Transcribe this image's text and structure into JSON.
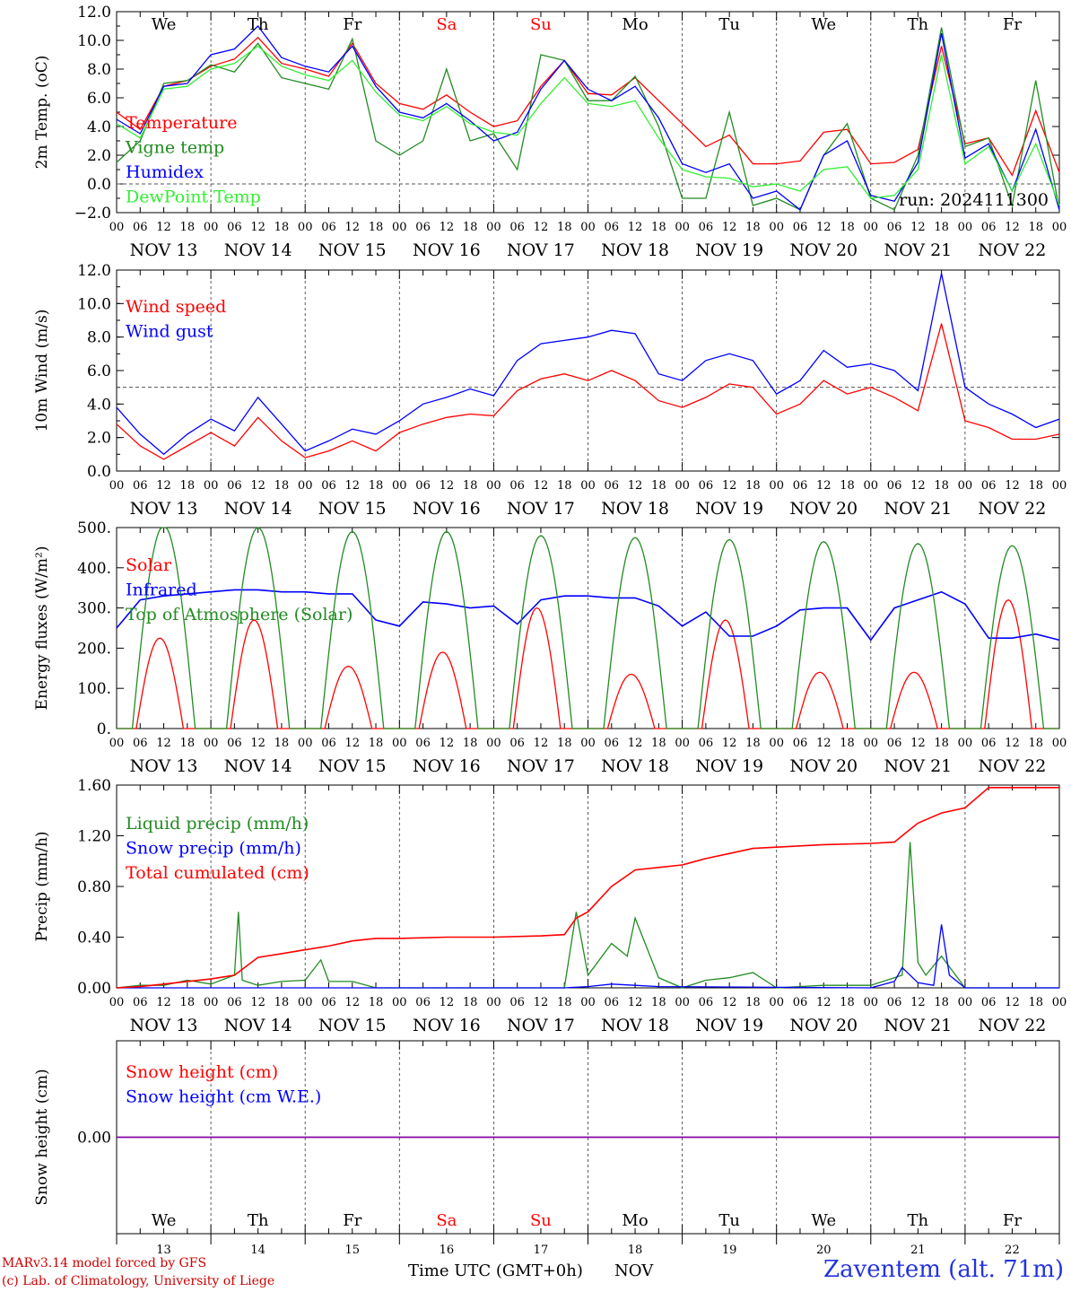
{
  "footer": {
    "model_line": "MARv3.14 model forced by GFS",
    "copyright_line": "(c) Lab. of Climatology, University of Liege",
    "xaxis_title": "Time UTC (GMT+0h)",
    "xaxis_unit": "NOV",
    "station": "Zaventem (alt. 71m)"
  },
  "run_label": "run: 2024111300",
  "colors": {
    "red": "#ff0000",
    "green": "#228b22",
    "blue": "#0000ff",
    "lightgreen": "#33ee33",
    "purple": "#8800aa"
  },
  "chart_data": [
    {
      "type": "line",
      "id": "temperature",
      "ylabel": "2m Temp. (oC)",
      "ylim": [
        -2,
        12
      ],
      "yticks": [
        "12.0",
        "10.0",
        "8.0",
        "6.0",
        "4.0",
        "2.0",
        "0.0",
        "−2.0"
      ],
      "ref_line": 0,
      "x_unit": "hours since Nov 13 00 UTC",
      "xlim": [
        0,
        240
      ],
      "legend_position": "left",
      "series": [
        {
          "name": "Temperature",
          "color": "#ff0000",
          "x": [
            0,
            6,
            12,
            18,
            24,
            30,
            36,
            42,
            48,
            54,
            60,
            66,
            72,
            78,
            84,
            90,
            96,
            102,
            108,
            114,
            120,
            126,
            132,
            138,
            144,
            150,
            156,
            162,
            168,
            174,
            180,
            186,
            192,
            198,
            204,
            210,
            216,
            222,
            228,
            234,
            240
          ],
          "y": [
            5.0,
            3.8,
            6.8,
            7.2,
            8.2,
            8.7,
            10.2,
            8.4,
            8.0,
            7.5,
            9.8,
            7.0,
            5.6,
            5.2,
            6.2,
            5.0,
            4.0,
            4.4,
            6.8,
            8.6,
            6.3,
            6.2,
            7.4,
            5.8,
            4.2,
            2.6,
            3.4,
            1.4,
            1.4,
            1.6,
            3.6,
            3.8,
            1.4,
            1.5,
            2.4,
            9.6,
            2.8,
            3.2,
            0.6,
            5.1,
            0.8
          ]
        },
        {
          "name": "Vigne temp",
          "color": "#228b22",
          "x": [
            0,
            6,
            12,
            18,
            24,
            30,
            36,
            42,
            48,
            54,
            60,
            66,
            72,
            78,
            84,
            90,
            96,
            102,
            108,
            114,
            120,
            126,
            132,
            138,
            144,
            150,
            156,
            162,
            168,
            174,
            180,
            186,
            192,
            198,
            204,
            210,
            216,
            222,
            228,
            234,
            240
          ],
          "y": [
            1.5,
            3.0,
            7.0,
            7.2,
            8.3,
            7.8,
            9.8,
            7.4,
            7.0,
            6.6,
            10.1,
            3.0,
            2.0,
            3.0,
            8.0,
            3.0,
            3.5,
            1.0,
            9.0,
            8.6,
            5.8,
            5.8,
            7.5,
            4.0,
            -1.0,
            -1.0,
            5.0,
            -1.5,
            -1.0,
            -1.8,
            2.0,
            4.2,
            -1.0,
            -1.8,
            2.0,
            10.9,
            2.6,
            3.2,
            -1.5,
            7.2,
            -1.8
          ]
        },
        {
          "name": "Humidex",
          "color": "#0000ff",
          "x": [
            0,
            6,
            12,
            18,
            24,
            30,
            36,
            42,
            48,
            54,
            60,
            66,
            72,
            78,
            84,
            90,
            96,
            102,
            108,
            114,
            120,
            126,
            132,
            138,
            144,
            150,
            156,
            162,
            168,
            174,
            180,
            186,
            192,
            198,
            204,
            210,
            216,
            222,
            228,
            234,
            240
          ],
          "y": [
            4.5,
            3.5,
            6.8,
            7.0,
            9.0,
            9.4,
            11.0,
            8.8,
            8.2,
            7.8,
            9.6,
            6.8,
            5.0,
            4.6,
            5.6,
            4.4,
            3.0,
            3.6,
            6.6,
            8.6,
            6.6,
            5.8,
            6.8,
            4.6,
            1.4,
            0.8,
            1.4,
            -1.0,
            -0.5,
            -1.8,
            2.0,
            3.0,
            -0.8,
            -1.2,
            1.5,
            10.5,
            1.8,
            2.8,
            -0.5,
            3.8,
            -1.8
          ]
        },
        {
          "name": "DewPoint Temp",
          "color": "#33ee33",
          "x": [
            0,
            6,
            12,
            18,
            24,
            30,
            36,
            42,
            48,
            54,
            60,
            66,
            72,
            78,
            84,
            90,
            96,
            102,
            108,
            114,
            120,
            126,
            132,
            138,
            144,
            150,
            156,
            162,
            168,
            174,
            180,
            186,
            192,
            198,
            204,
            210,
            216,
            222,
            228,
            234,
            240
          ],
          "y": [
            4.2,
            3.2,
            6.6,
            6.8,
            8.0,
            8.4,
            9.6,
            8.2,
            7.6,
            7.2,
            8.6,
            6.4,
            4.8,
            4.4,
            5.4,
            4.2,
            3.6,
            3.4,
            5.6,
            7.4,
            5.6,
            5.4,
            5.8,
            3.2,
            1.0,
            0.5,
            0.4,
            -0.2,
            0.0,
            -0.5,
            1.0,
            1.2,
            -1.0,
            -0.8,
            1.0,
            9.0,
            1.4,
            2.6,
            -0.5,
            2.8,
            -1.5
          ]
        }
      ]
    },
    {
      "type": "line",
      "id": "wind",
      "ylabel": "10m Wind (m/s)",
      "ylim": [
        0,
        12
      ],
      "yticks": [
        "12.0",
        "10.0",
        "8.0",
        "6.0",
        "4.0",
        "2.0",
        "0.0"
      ],
      "ref_line": 5,
      "xlim": [
        0,
        240
      ],
      "series": [
        {
          "name": "Wind speed",
          "color": "#ff0000",
          "x": [
            0,
            6,
            12,
            18,
            24,
            30,
            36,
            42,
            48,
            54,
            60,
            66,
            72,
            78,
            84,
            90,
            96,
            102,
            108,
            114,
            120,
            126,
            132,
            138,
            144,
            150,
            156,
            162,
            168,
            174,
            180,
            186,
            192,
            198,
            204,
            210,
            216,
            222,
            228,
            234,
            240
          ],
          "y": [
            2.8,
            1.5,
            0.7,
            1.5,
            2.3,
            1.5,
            3.2,
            1.8,
            0.8,
            1.2,
            1.8,
            1.2,
            2.3,
            2.8,
            3.2,
            3.4,
            3.3,
            4.8,
            5.5,
            5.8,
            5.4,
            6.0,
            5.4,
            4.2,
            3.8,
            4.4,
            5.2,
            5.0,
            3.4,
            4.0,
            5.4,
            4.6,
            5.0,
            4.4,
            3.6,
            8.8,
            3.0,
            2.6,
            1.9,
            1.9,
            2.2
          ]
        },
        {
          "name": "Wind gust",
          "color": "#0000ff",
          "x": [
            0,
            6,
            12,
            18,
            24,
            30,
            36,
            42,
            48,
            54,
            60,
            66,
            72,
            78,
            84,
            90,
            96,
            102,
            108,
            114,
            120,
            126,
            132,
            138,
            144,
            150,
            156,
            162,
            168,
            174,
            180,
            186,
            192,
            198,
            204,
            210,
            216,
            222,
            228,
            234,
            240
          ],
          "y": [
            3.8,
            2.2,
            1.0,
            2.2,
            3.1,
            2.4,
            4.4,
            2.8,
            1.2,
            1.8,
            2.5,
            2.2,
            3.0,
            4.0,
            4.4,
            4.9,
            4.5,
            6.6,
            7.6,
            7.8,
            8.0,
            8.4,
            8.2,
            5.8,
            5.4,
            6.6,
            7.0,
            6.6,
            4.6,
            5.4,
            7.2,
            6.2,
            6.4,
            6.0,
            4.8,
            11.8,
            5.0,
            4.0,
            3.4,
            2.6,
            3.1
          ]
        }
      ]
    },
    {
      "type": "line",
      "id": "energy",
      "ylabel": "Energy fluxes (W/m²)",
      "ylim": [
        0,
        500
      ],
      "yticks": [
        "500.",
        "400.",
        "300.",
        "200.",
        "100.",
        "0."
      ],
      "xlim": [
        0,
        240
      ],
      "series": [
        {
          "name": "Solar",
          "color": "#ff0000",
          "peaks": [
            225,
            270,
            155,
            190,
            300,
            135,
            270,
            140,
            140,
            320
          ],
          "peak_hours": [
            11,
            35,
            59,
            83,
            107,
            131,
            155,
            179,
            203,
            227
          ]
        },
        {
          "name": "Infrared",
          "color": "#0000ff",
          "x": [
            0,
            6,
            12,
            18,
            24,
            30,
            36,
            42,
            48,
            54,
            60,
            66,
            72,
            78,
            84,
            90,
            96,
            102,
            108,
            114,
            120,
            126,
            132,
            138,
            144,
            150,
            156,
            162,
            168,
            174,
            180,
            186,
            192,
            198,
            204,
            210,
            216,
            222,
            228,
            234,
            240
          ],
          "y": [
            250,
            320,
            330,
            335,
            340,
            345,
            345,
            340,
            340,
            335,
            335,
            270,
            255,
            315,
            310,
            300,
            305,
            260,
            320,
            330,
            330,
            325,
            325,
            305,
            255,
            290,
            230,
            230,
            255,
            295,
            300,
            300,
            220,
            300,
            320,
            340,
            310,
            225,
            225,
            235,
            220
          ]
        },
        {
          "name": "Top of Atmosphere (Solar)",
          "color": "#228b22",
          "peaks": [
            505,
            500,
            490,
            490,
            480,
            475,
            470,
            465,
            460,
            455
          ],
          "peak_hours": [
            12,
            36,
            60,
            84,
            108,
            132,
            156,
            180,
            204,
            228
          ]
        }
      ]
    },
    {
      "type": "line",
      "id": "precip",
      "ylabel": "Precip (mm/h)",
      "ylim": [
        0,
        1.6
      ],
      "yticks": [
        "1.60",
        "1.20",
        "0.80",
        "0.40",
        "0.00"
      ],
      "xlim": [
        0,
        240
      ],
      "series": [
        {
          "name": "Liquid precip (mm/h)",
          "color": "#228b22",
          "x": [
            0,
            6,
            12,
            18,
            24,
            30,
            31,
            32,
            36,
            42,
            48,
            52,
            54,
            60,
            66,
            90,
            114,
            117,
            120,
            126,
            130,
            132,
            138,
            144,
            150,
            156,
            162,
            168,
            180,
            192,
            200,
            202,
            204,
            206,
            210,
            216,
            240
          ],
          "y": [
            0,
            0.02,
            0.02,
            0.06,
            0.03,
            0.1,
            0.6,
            0.06,
            0.02,
            0.05,
            0.06,
            0.22,
            0.05,
            0.05,
            0.0,
            0.0,
            0.0,
            0.6,
            0.1,
            0.35,
            0.25,
            0.55,
            0.08,
            0.0,
            0.06,
            0.08,
            0.12,
            0.0,
            0.02,
            0.02,
            0.1,
            1.15,
            0.2,
            0.1,
            0.25,
            0.0,
            0.0
          ]
        },
        {
          "name": "Snow precip (mm/h)",
          "color": "#0000ff",
          "x": [
            0,
            114,
            120,
            126,
            132,
            138,
            192,
            198,
            200,
            204,
            208,
            210,
            212,
            216,
            240
          ],
          "y": [
            0,
            0,
            0.01,
            0.03,
            0.02,
            0.01,
            0,
            0.05,
            0.16,
            0.04,
            0.02,
            0.5,
            0.1,
            0,
            0
          ]
        },
        {
          "name": "Total cumulated (cm)",
          "color": "#ff0000",
          "x": [
            0,
            6,
            12,
            18,
            24,
            30,
            36,
            42,
            48,
            54,
            60,
            66,
            72,
            84,
            96,
            108,
            114,
            117,
            120,
            126,
            132,
            138,
            144,
            150,
            156,
            162,
            168,
            180,
            192,
            198,
            200,
            204,
            210,
            216,
            222,
            228,
            234,
            240
          ],
          "y": [
            0.0,
            0.01,
            0.03,
            0.05,
            0.07,
            0.1,
            0.24,
            0.27,
            0.3,
            0.33,
            0.37,
            0.39,
            0.39,
            0.4,
            0.4,
            0.41,
            0.42,
            0.55,
            0.6,
            0.8,
            0.93,
            0.95,
            0.97,
            1.02,
            1.06,
            1.1,
            1.11,
            1.13,
            1.14,
            1.15,
            1.2,
            1.3,
            1.38,
            1.42,
            1.58,
            1.58,
            1.58,
            1.58
          ]
        }
      ]
    },
    {
      "type": "line",
      "id": "snow",
      "ylabel": "Snow height (cm)",
      "ylim": [
        -1,
        1
      ],
      "yticks": [
        "0.00"
      ],
      "xlim": [
        0,
        240
      ],
      "series": [
        {
          "name": "Snow height (cm)",
          "color": "#ff0000",
          "x": [
            0,
            240
          ],
          "y": [
            0,
            0
          ]
        },
        {
          "name": "Snow height (cm W.E.)",
          "color": "#0000ff",
          "x": [
            0,
            240
          ],
          "y": [
            0,
            0
          ]
        }
      ]
    }
  ],
  "xaxis": {
    "hour_ticks": [
      "00",
      "06",
      "12",
      "18"
    ],
    "last_tick": "00",
    "dates": [
      "NOV 13",
      "NOV 14",
      "NOV 15",
      "NOV 16",
      "NOV 17",
      "NOV 18",
      "NOV 19",
      "NOV 20",
      "NOV 21",
      "NOV 22"
    ],
    "days_of_week": [
      "We",
      "Th",
      "Fr",
      "Sa",
      "Su",
      "Mo",
      "Tu",
      "We",
      "Th",
      "Fr"
    ],
    "weekend_days": [
      3,
      4
    ],
    "day_numbers": [
      "13",
      "14",
      "15",
      "16",
      "17",
      "18",
      "19",
      "20",
      "21",
      "22"
    ]
  }
}
